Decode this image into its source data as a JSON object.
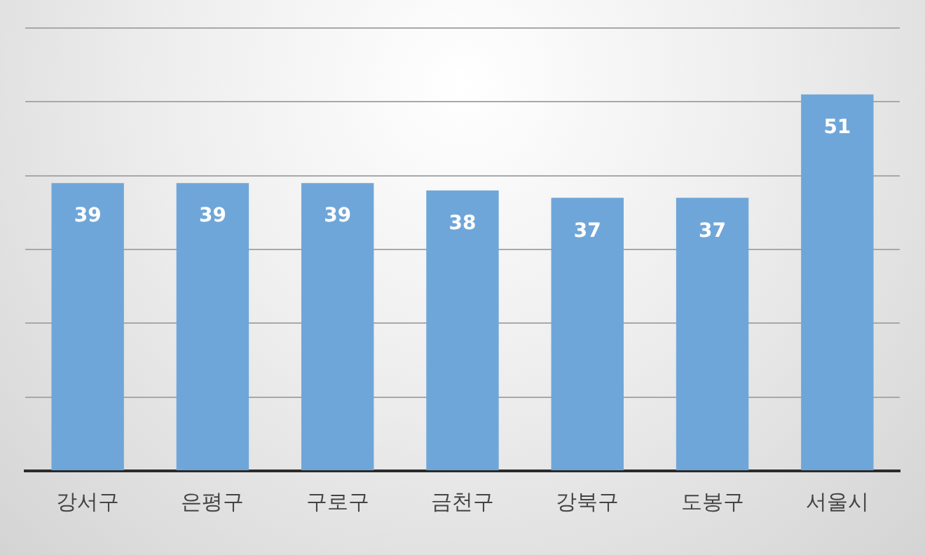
{
  "chart_data": {
    "type": "bar",
    "categories": [
      "강서구",
      "은평구",
      "구로구",
      "금천구",
      "강북구",
      "도봉구",
      "서울시"
    ],
    "values": [
      39,
      39,
      39,
      38,
      37,
      37,
      51
    ],
    "color": "#6fa6d9",
    "ylim": [
      0,
      60
    ],
    "yticks": [
      {
        "value": 0,
        "label": null
      },
      {
        "value": 10,
        "label": null
      },
      {
        "value": 20,
        "label": null
      },
      {
        "value": 30,
        "label": null
      },
      {
        "value": 40,
        "label": null
      },
      {
        "value": 50,
        "label": null
      },
      {
        "value": 60,
        "label": null
      }
    ],
    "grid": "y",
    "tick_labels": "x",
    "data_labels": true
  }
}
